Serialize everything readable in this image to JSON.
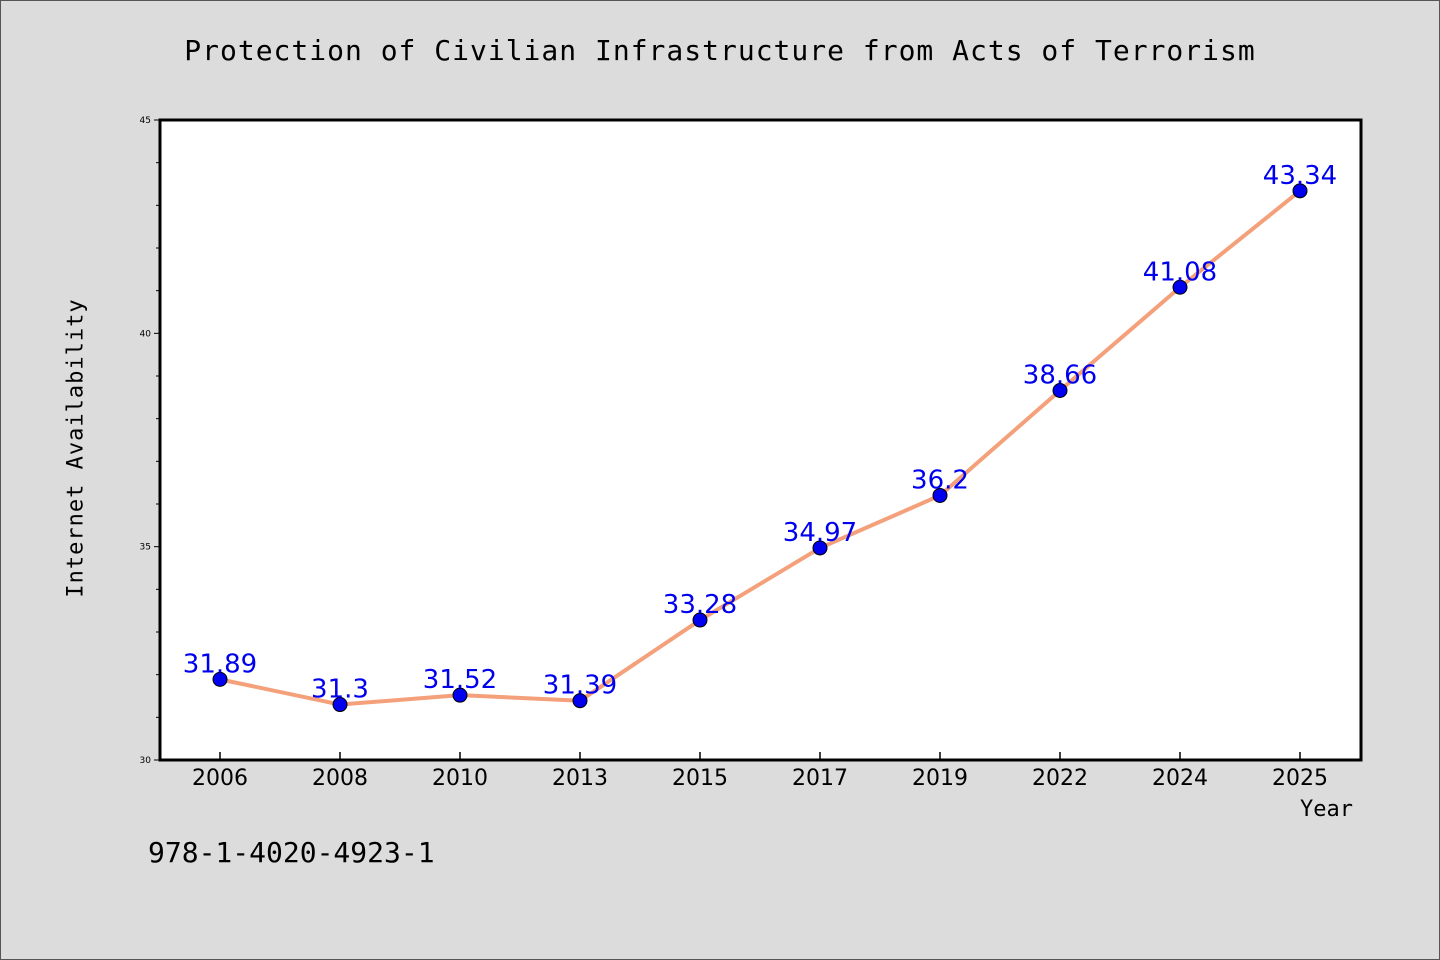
{
  "chart_data": {
    "type": "line",
    "title": "Protection of Civilian Infrastructure from Acts of Terrorism",
    "xlabel": "Year",
    "ylabel": "Internet Availability",
    "categories": [
      "2006",
      "2008",
      "2010",
      "2013",
      "2015",
      "2017",
      "2019",
      "2022",
      "2024",
      "2025"
    ],
    "series": [
      {
        "values": [
          31.89,
          31.3,
          31.52,
          31.39,
          33.28,
          34.97,
          36.2,
          38.66,
          41.08,
          43.34
        ],
        "labels": [
          "31.89",
          "31.3",
          "31.52",
          "31.39",
          "33.28",
          "34.97",
          "36.2",
          "38.66",
          "41.08",
          "43.34"
        ],
        "line_color": "#f4a07a",
        "marker_color": "#0000ee",
        "label_color": "#0000ee"
      }
    ],
    "ylim": [
      30,
      45
    ],
    "yticks": [
      30,
      35,
      40,
      45
    ],
    "grid": false,
    "legend": "none"
  },
  "footer_text": "978-1-4020-4923-1",
  "background_color": "#dcdcdc"
}
